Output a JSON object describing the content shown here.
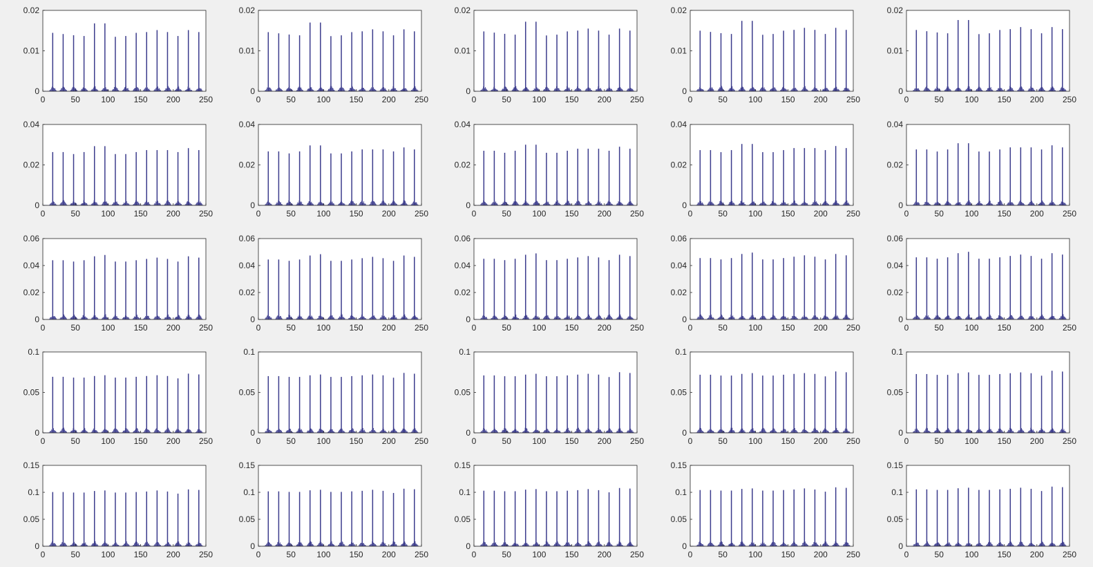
{
  "figure": {
    "background": "#f0f0f0",
    "axes_background": "#ffffff",
    "bar_color": "#3b3b8c",
    "rows": 5,
    "cols": 5
  },
  "chart_data": {
    "type": "bar",
    "layout": "5x5 grid of histograms",
    "x_ticks": [
      "0",
      "50",
      "100",
      "150",
      "200",
      "250"
    ],
    "xlim": [
      0,
      250
    ],
    "spike_positions": [
      15,
      31,
      47,
      63,
      79,
      95,
      111,
      127,
      143,
      159,
      175,
      191,
      207,
      223,
      239
    ],
    "rows": [
      {
        "ylim": [
          0,
          0.02
        ],
        "y_ticks": [
          "0",
          "0.01",
          "0.02"
        ],
        "spike_heights": [
          0.0148,
          0.0145,
          0.0142,
          0.014,
          0.0172,
          0.0172,
          0.0138,
          0.014,
          0.0148,
          0.015,
          0.0155,
          0.015,
          0.014,
          0.0155,
          0.015
        ]
      },
      {
        "ylim": [
          0,
          0.04
        ],
        "y_ticks": [
          "0",
          "0.02",
          "0.04"
        ],
        "spike_heights": [
          0.027,
          0.027,
          0.026,
          0.027,
          0.03,
          0.03,
          0.026,
          0.026,
          0.027,
          0.028,
          0.028,
          0.028,
          0.027,
          0.029,
          0.028
        ]
      },
      {
        "ylim": [
          0,
          0.06
        ],
        "y_ticks": [
          "0",
          "0.02",
          "0.04",
          "0.06"
        ],
        "spike_heights": [
          0.045,
          0.045,
          0.044,
          0.045,
          0.048,
          0.049,
          0.044,
          0.044,
          0.045,
          0.046,
          0.047,
          0.046,
          0.044,
          0.048,
          0.047
        ]
      },
      {
        "ylim": [
          0,
          0.1
        ],
        "y_ticks": [
          "0",
          "0.05",
          "0.1"
        ],
        "spike_heights": [
          0.071,
          0.071,
          0.07,
          0.07,
          0.072,
          0.073,
          0.07,
          0.07,
          0.071,
          0.072,
          0.073,
          0.072,
          0.069,
          0.075,
          0.074
        ]
      },
      {
        "ylim": [
          0,
          0.15
        ],
        "y_ticks": [
          "0",
          "0.05",
          "0.1",
          "0.15"
        ],
        "spike_heights": [
          0.103,
          0.103,
          0.102,
          0.102,
          0.105,
          0.106,
          0.102,
          0.102,
          0.103,
          0.104,
          0.106,
          0.104,
          0.1,
          0.108,
          0.107
        ]
      }
    ]
  }
}
